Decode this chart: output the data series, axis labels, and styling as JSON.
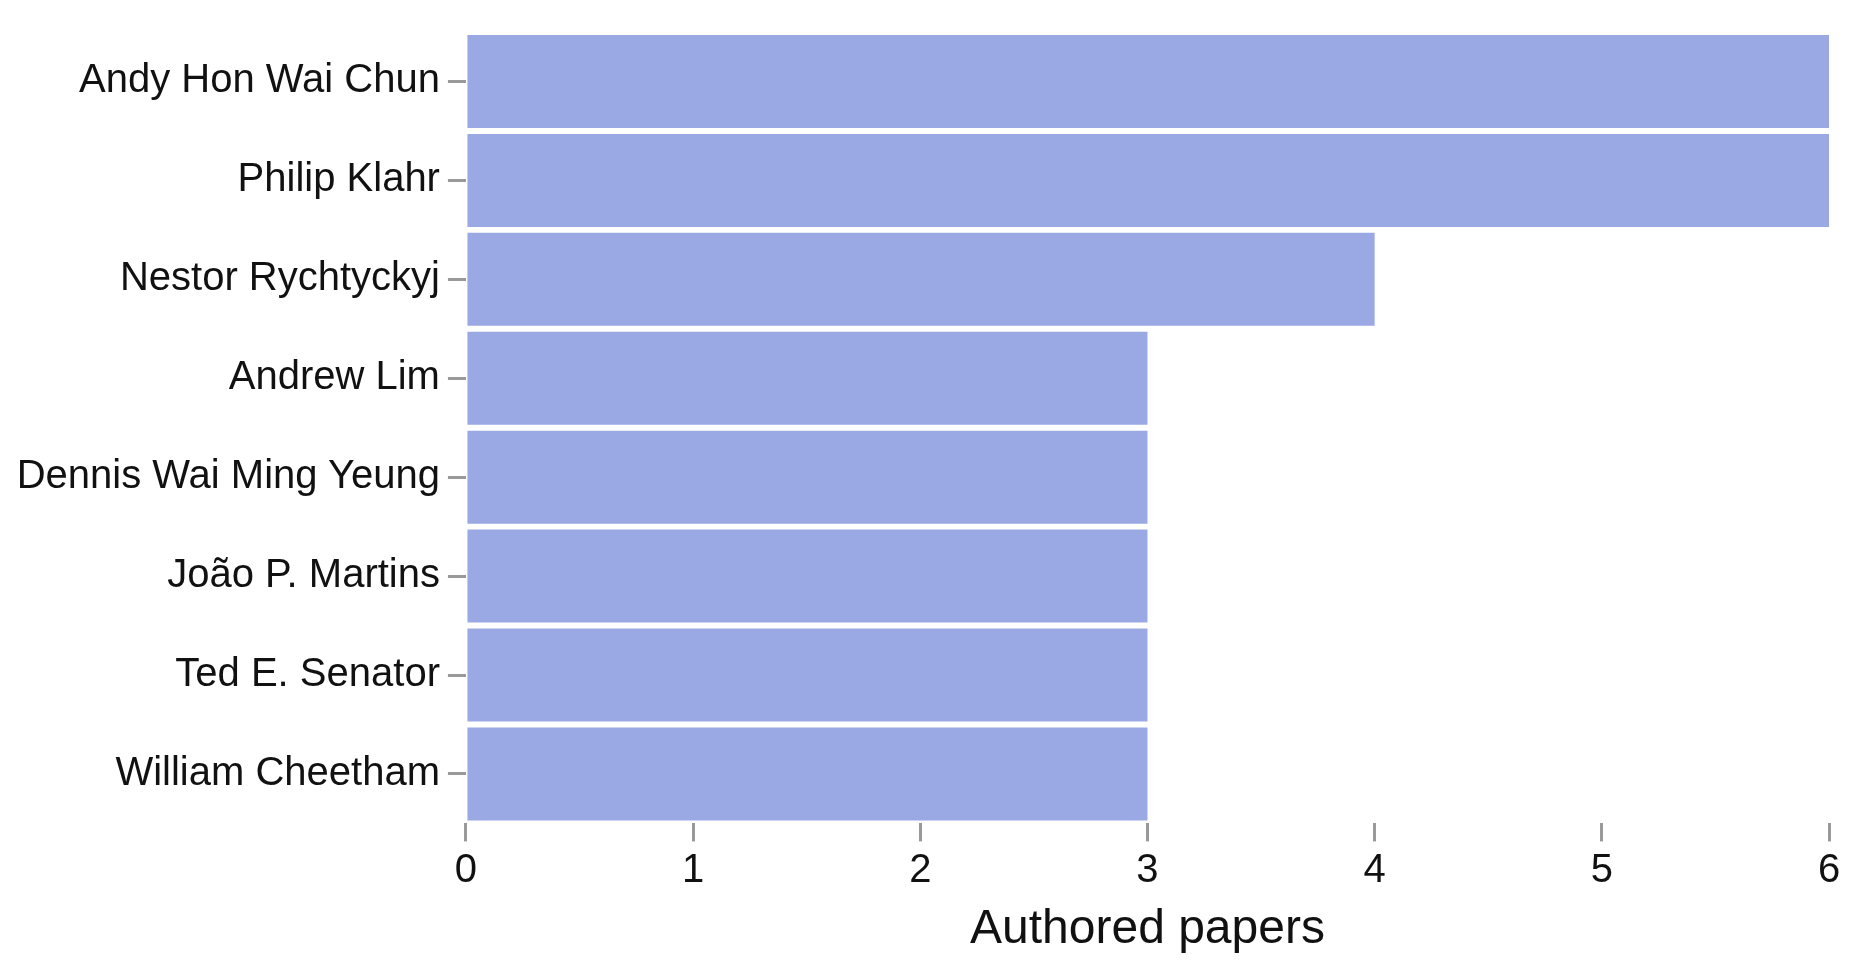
{
  "chart_data": {
    "type": "bar",
    "orientation": "horizontal",
    "xlabel": "Authored papers",
    "categories": [
      "Andy Hon Wai Chun",
      "Philip Klahr",
      "Nestor Rychtyckyj",
      "Andrew Lim",
      "Dennis Wai Ming Yeung",
      "João P. Martins",
      "Ted E. Senator",
      "William Cheetham"
    ],
    "values": [
      6,
      6,
      4,
      3,
      3,
      3,
      3,
      3
    ],
    "color": "#9aa9e3",
    "xlim": [
      0,
      6
    ],
    "xticks": [
      0,
      1,
      2,
      3,
      4,
      5,
      6
    ],
    "grid": false,
    "legend": false
  }
}
